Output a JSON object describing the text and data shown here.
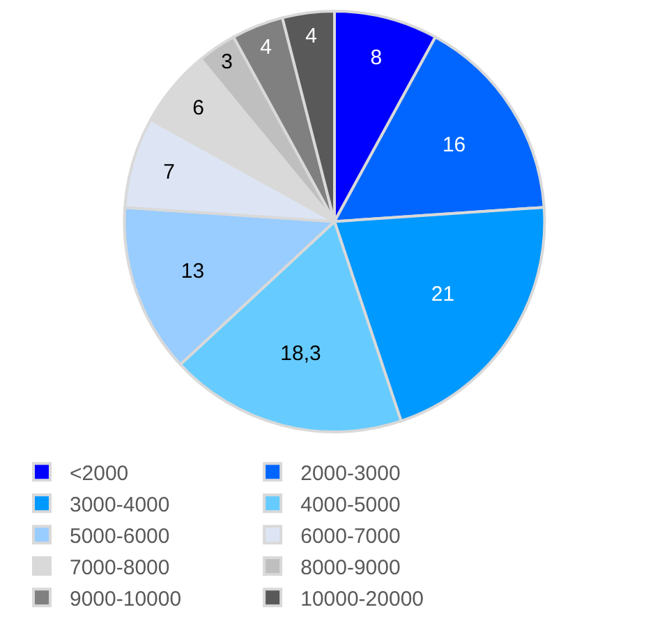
{
  "chart_data": {
    "type": "pie",
    "categories": [
      "<2000",
      "2000-3000",
      "3000-4000",
      "4000-5000",
      "5000-6000",
      "6000-7000",
      "7000-8000",
      "8000-9000",
      "9000-10000",
      "10000-20000"
    ],
    "values": [
      8,
      16,
      21,
      18.3,
      13,
      7,
      6,
      3,
      4,
      4
    ],
    "value_labels": [
      "8",
      "16",
      "21",
      "18,3",
      "13",
      "7",
      "6",
      "3",
      "4",
      "4"
    ],
    "colors": [
      "#0000ff",
      "#0066ff",
      "#0099ff",
      "#66ccff",
      "#99ccff",
      "#dde5f5",
      "#d9d9d9",
      "#bfbfbf",
      "#808080",
      "#595959"
    ],
    "legend": "bottom"
  }
}
